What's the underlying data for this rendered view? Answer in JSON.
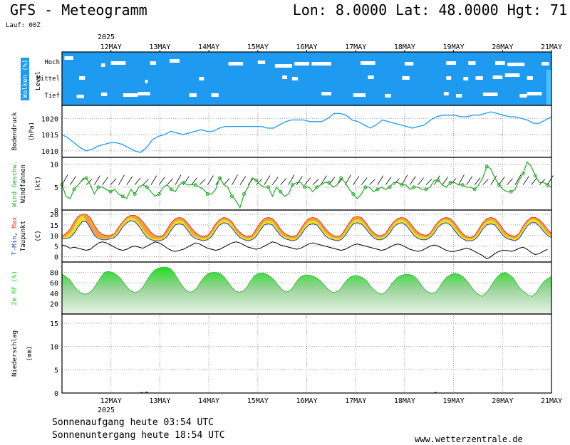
{
  "header": {
    "title": "GFS - Meteogramm",
    "coords": "Lon: 8.0000 Lat: 48.0000 Hgt: 71",
    "run": "Lauf: 00Z"
  },
  "footer": {
    "sunrise": "Sonnenaufgang heute 03:54 UTC",
    "sunset": "Sonnenuntergang heute 18:54 UTC",
    "source": "www.wetterzentrale.de"
  },
  "colors": {
    "clouds_bg": "#1e9bf0",
    "pressure": "#1e9bf0",
    "wind": "#22aa22",
    "tmax": "#e04020",
    "tmin": "#2040c0",
    "rh": "#22cc22",
    "precip": "#c03020"
  },
  "chart_data": {
    "type": "line",
    "x_axis": {
      "year": "2025",
      "ticks": [
        "12MAY",
        "13MAY",
        "14MAY",
        "15MAY",
        "16MAY",
        "17MAY",
        "18MAY",
        "19MAY",
        "20MAY",
        "21MAY"
      ],
      "range_days": [
        11.0,
        21.0
      ]
    },
    "panels": [
      {
        "id": "clouds",
        "type": "heatmap",
        "ylabel_colored": "Wolken (%)",
        "ylabel": "Level",
        "levels": [
          "Hoch",
          "Mittel",
          "Tief"
        ],
        "note": "cloud cover mostly high across all levels with scattered gaps"
      },
      {
        "id": "pressure",
        "type": "line",
        "ylabel": "Bodendruck",
        "unit": "(hPa)",
        "ylim": [
          1008,
          1024
        ],
        "yticks": [
          1010,
          1015,
          1020
        ],
        "series": [
          {
            "values": [
              1015,
              1014,
              1012.5,
              1011,
              1010,
              1010.5,
              1011.5,
              1012,
              1012.5,
              1012.5,
              1012,
              1011,
              1010,
              1009.5,
              1011,
              1013.5,
              1014.5,
              1015,
              1016,
              1015.5,
              1015,
              1015.5,
              1016,
              1016.5,
              1016,
              1016,
              1017,
              1017.5,
              1017.5,
              1017.5,
              1017.5,
              1017.5,
              1017.5,
              1017.5,
              1017,
              1017,
              1018,
              1019,
              1019.5,
              1019.5,
              1019.5,
              1019,
              1019,
              1019,
              1020,
              1021.5,
              1021.5,
              1021,
              1019.5,
              1019,
              1018,
              1017,
              1018,
              1019.5,
              1019,
              1018.5,
              1018,
              1017.5,
              1017,
              1017.5,
              1018,
              1019.5,
              1020.5,
              1021,
              1021,
              1021,
              1020.5,
              1020.5,
              1021,
              1021,
              1021.5,
              1022,
              1021.5,
              1021,
              1020.5,
              1020.5,
              1020,
              1019.5,
              1018.5,
              1018.5,
              1019.5,
              1020.5
            ]
          }
        ]
      },
      {
        "id": "wind",
        "type": "line",
        "ylabel_colored": "Wind Geschw.",
        "ylabel": "Windfahnen",
        "unit": "(kt)",
        "ylim": [
          0,
          11.5
        ],
        "yticks": [
          0,
          5,
          10
        ],
        "series": [
          {
            "values": [
              5.5,
              3,
              2.5,
              4.5,
              5.5,
              6.5,
              7,
              5.5,
              3.5,
              5,
              5,
              4.5,
              4,
              4.5,
              3.5,
              3,
              2.5,
              4.5,
              3.5,
              5,
              5.5,
              5,
              4,
              3,
              3.5,
              5,
              5.5,
              4.5,
              4,
              5.5,
              6,
              5.5,
              5.5,
              5.5,
              5,
              4.5,
              3.5,
              3.5,
              4.5,
              7,
              5.5,
              5,
              3,
              2,
              0.5,
              3.5,
              5,
              7,
              6.5,
              5.5,
              5,
              5,
              3,
              5,
              4,
              3,
              3.5,
              5.5,
              6,
              6,
              5,
              5,
              4,
              5,
              5.5,
              6,
              6,
              5,
              5.5,
              7,
              6,
              4.5,
              3.5,
              2.5,
              3.5,
              5,
              5,
              4,
              4.5,
              5,
              4.5,
              5,
              6,
              6,
              5.5,
              5.5,
              4.5,
              5,
              5,
              4.5,
              4.5,
              5,
              6.5,
              6.5,
              5.5,
              5,
              6,
              6,
              5.5,
              5.5,
              5,
              5,
              4.5,
              5.5,
              7,
              9.5,
              9,
              7,
              5.5,
              4.5,
              4,
              4,
              4.5,
              6.5,
              8,
              10.5,
              9.5,
              7.5,
              6,
              6,
              5.5,
              5
            ]
          }
        ]
      },
      {
        "id": "temperature",
        "type": "area",
        "ylabel_colored_min": "T-Min",
        "ylabel_colored_max": "Max",
        "ylabel": "Taupunkt",
        "unit": "(C)",
        "ylim": [
          -2.5,
          22
        ],
        "yticks": [
          0,
          5,
          10,
          15,
          20
        ],
        "series": [
          {
            "values": [
              9.5,
              11,
              13,
              16.5,
              19,
              20,
              20,
              18.5,
              15,
              12,
              10.5,
              10,
              10,
              11,
              14,
              16.5,
              18.5,
              19.5,
              19.5,
              18.5,
              16.5,
              14,
              11.5,
              10,
              9.5,
              10,
              13,
              16,
              18,
              18.5,
              18,
              16,
              13.5,
              11.5,
              10,
              9.5,
              10,
              12.5,
              15.5,
              17.5,
              18.5,
              18,
              16.5,
              13.5,
              11.5,
              10,
              9.5,
              10,
              13,
              16,
              18,
              18.5,
              18,
              16,
              13,
              11,
              10,
              9.5,
              10,
              13,
              16,
              18,
              18.5,
              18,
              16,
              13.5,
              11.5,
              10,
              9.5,
              10,
              13,
              16,
              18.5,
              19,
              18.5,
              16.5,
              13.5,
              11.5,
              10,
              10,
              11,
              14,
              16.5,
              18,
              18.5,
              18,
              16,
              13.5,
              11.5,
              10.5,
              10,
              11,
              14,
              16.5,
              18,
              18.5,
              18,
              16,
              13.5,
              11,
              9.5,
              9,
              10,
              13,
              16,
              18,
              18.5,
              18,
              16,
              13,
              11,
              10,
              9.5,
              11,
              14.5,
              17,
              18.5,
              18.5,
              17.5,
              15.5,
              13,
              11
            ]
          },
          {
            "values": [
              9,
              9.5,
              11,
              14,
              17.5,
              19.5,
              17,
              13,
              10,
              9,
              8.5,
              8.5,
              9,
              10,
              12.5,
              15.5,
              17.5,
              18.5,
              18,
              16,
              13,
              10.5,
              9,
              8.5,
              8.5,
              9,
              11,
              14,
              16.5,
              17,
              16.5,
              14,
              11,
              9.5,
              9,
              8.5,
              9,
              11,
              14,
              16.5,
              17.5,
              17,
              15,
              12,
              10,
              9,
              8.5,
              9,
              11,
              14,
              16.5,
              17,
              16.5,
              14,
              11,
              9.5,
              9,
              8.5,
              9,
              11.5,
              14.5,
              16.5,
              17,
              16.5,
              14,
              11.5,
              10,
              9,
              8.5,
              9,
              11.5,
              14.5,
              17,
              17.5,
              17,
              15,
              12,
              10,
              9,
              9,
              10,
              12.5,
              15.5,
              17,
              17.5,
              16.5,
              14,
              11.5,
              10,
              9.5,
              9,
              10,
              12.5,
              15.5,
              17,
              17.5,
              16.5,
              14,
              11.5,
              9.5,
              8.5,
              8.5,
              9,
              11.5,
              14.5,
              16.5,
              17,
              16.5,
              14,
              11,
              9.5,
              9,
              8.5,
              10,
              13,
              16,
              17.5,
              17.5,
              16,
              13.5,
              11,
              10
            ]
          },
          {
            "values": [
              8.5,
              8.5,
              9,
              11,
              14,
              16.5,
              16.5,
              13.5,
              10,
              8.5,
              8,
              8,
              8.5,
              9,
              11,
              14,
              16,
              17,
              16.5,
              14.5,
              11.5,
              9,
              8,
              7.5,
              7.5,
              8,
              9.5,
              12.5,
              15,
              15.5,
              15,
              12.5,
              10,
              8.5,
              8,
              7.5,
              8,
              9.5,
              12.5,
              15,
              16,
              15.5,
              13.5,
              11,
              9,
              8,
              7.5,
              8,
              9.5,
              12.5,
              15,
              15.5,
              15,
              12.5,
              10,
              8.5,
              8,
              7.5,
              8,
              10,
              13,
              15,
              15.5,
              15,
              12.5,
              10,
              8.5,
              8,
              7.5,
              8,
              10,
              13,
              15.5,
              16,
              15.5,
              13.5,
              11,
              9,
              8,
              8,
              9,
              11,
              14,
              15.5,
              16,
              15,
              12.5,
              10,
              8.5,
              8,
              8,
              9,
              11,
              14,
              15.5,
              16,
              15,
              12.5,
              10,
              8.5,
              7.5,
              7.5,
              8,
              10,
              13,
              15,
              15.5,
              15,
              12.5,
              10,
              8.5,
              8,
              7.5,
              8.5,
              11.5,
              14.5,
              16,
              16,
              14.5,
              12,
              10,
              9
            ]
          },
          {
            "values": [
              5.5,
              5,
              4,
              4.5,
              4,
              3.5,
              3,
              3.5,
              5,
              6.5,
              7,
              6.5,
              5.5,
              4.5,
              3.5,
              3,
              3.5,
              4.5,
              5,
              4.5,
              4,
              5,
              6,
              7,
              6.5,
              5.5,
              4,
              3,
              2.5,
              3,
              3.5,
              4.5,
              5.5,
              6.5,
              6,
              5,
              4,
              3.5,
              3,
              3.5,
              4.5,
              5.5,
              6.5,
              7,
              6.5,
              5.5,
              4.5,
              4,
              3.5,
              4,
              5,
              6,
              7,
              6.5,
              5.5,
              5,
              4.5,
              4,
              3.5,
              4,
              5,
              6,
              6.5,
              6,
              5.5,
              5,
              4.5,
              4,
              3.5,
              3,
              3.5,
              4.5,
              5.5,
              6,
              5.5,
              5,
              4.5,
              4,
              3.5,
              3,
              3.5,
              4.5,
              5.5,
              6,
              5.5,
              4.5,
              3.5,
              3,
              2.5,
              3,
              4,
              5,
              5.5,
              5,
              4,
              3,
              2.5,
              2.5,
              3,
              3.5,
              4,
              3.5,
              2.5,
              1.5,
              0.5,
              -1,
              0,
              1.5,
              2.5,
              3,
              3,
              2.5,
              3,
              4,
              4.5,
              3.5,
              2,
              1,
              1.5,
              2.5,
              3.5
            ]
          }
        ]
      },
      {
        "id": "humidity",
        "type": "area",
        "ylabel_colored": "2m RF (%)",
        "ylim": [
          0,
          100
        ],
        "yticks": [
          20,
          40,
          60,
          80
        ],
        "series": [
          {
            "values": [
              77,
              72,
              66,
              55,
              46,
              40,
              38,
              40,
              47,
              58,
              70,
              80,
              82,
              80,
              76,
              70,
              60,
              50,
              44,
              41,
              44,
              52,
              64,
              76,
              84,
              88,
              90,
              90,
              88,
              80,
              68,
              56,
              47,
              42,
              43,
              50,
              62,
              72,
              78,
              80,
              80,
              78,
              72,
              62,
              52,
              44,
              42,
              44,
              52,
              64,
              74,
              78,
              79,
              77,
              72,
              66,
              56,
              48,
              42,
              44,
              52,
              64,
              72,
              75,
              75,
              73,
              70,
              64,
              56,
              48,
              42,
              42,
              46,
              56,
              66,
              72,
              74,
              73,
              70,
              64,
              54,
              46,
              40,
              38,
              42,
              52,
              62,
              70,
              74,
              76,
              76,
              74,
              68,
              58,
              48,
              42,
              40,
              42,
              52,
              64,
              72,
              76,
              78,
              76,
              72,
              64,
              54,
              44,
              38,
              34,
              40,
              50,
              62,
              72,
              78,
              80,
              76,
              70,
              58,
              48,
              42,
              36,
              34,
              40,
              52,
              62,
              68,
              72
            ]
          }
        ]
      },
      {
        "id": "precip",
        "type": "bar",
        "ylabel": "Niederschlag",
        "unit": "(mm)",
        "ylim": [
          0,
          17
        ],
        "yticks": [
          0,
          5,
          10,
          15
        ],
        "series": [
          {
            "points": [
              [
                12.6,
                0.2
              ],
              [
                12.7,
                0.3
              ],
              [
                18.6,
                0.2
              ]
            ]
          }
        ]
      }
    ]
  }
}
